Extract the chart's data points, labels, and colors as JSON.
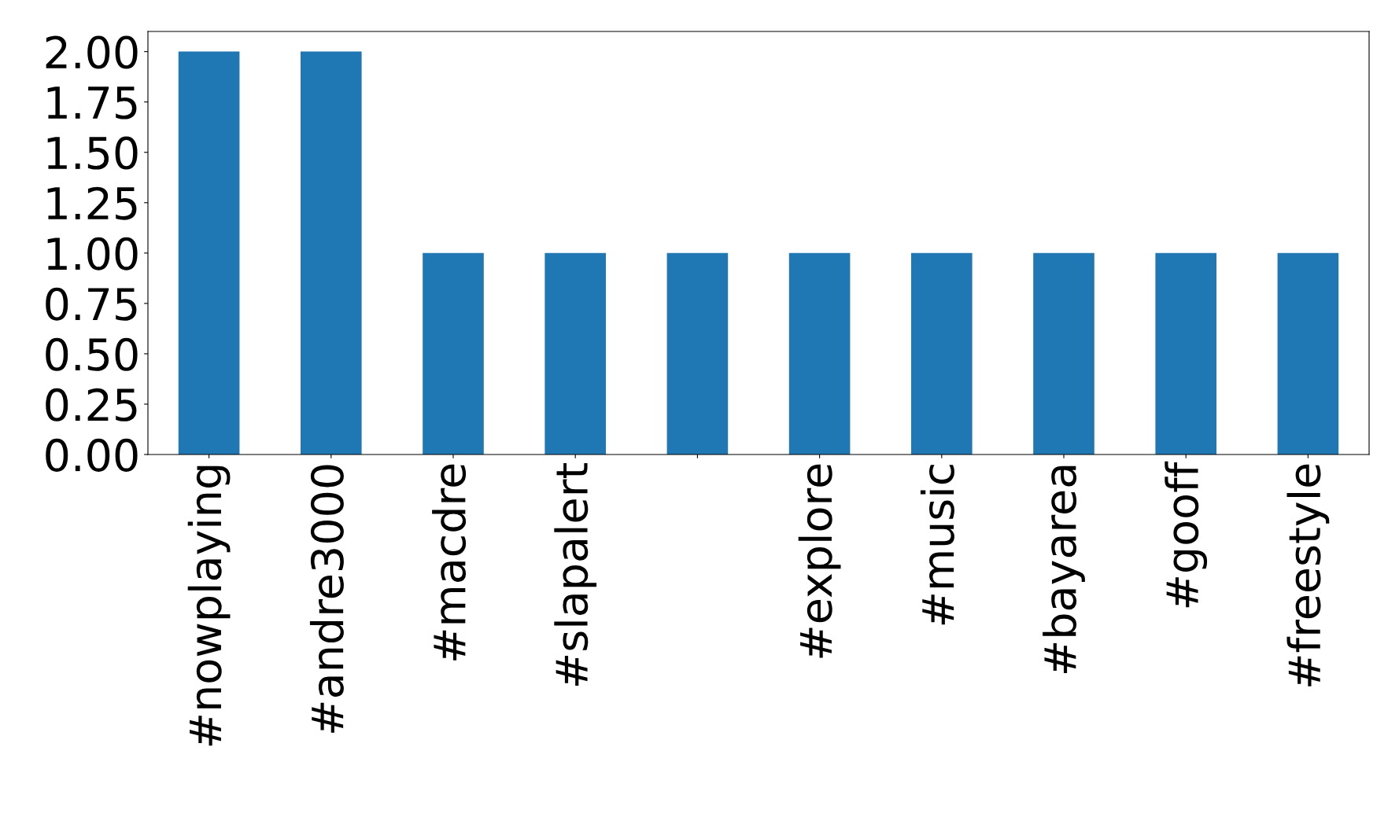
{
  "chart_data": {
    "type": "bar",
    "categories": [
      "#nowplaying",
      "#andre3000",
      "#macdre",
      "#slapalert",
      null,
      "#explore",
      "#music",
      "#bayarea",
      "#gooff",
      "#freestyle"
    ],
    "values": [
      2,
      2,
      1,
      1,
      1,
      1,
      1,
      1,
      1,
      1
    ],
    "color": "#1f77b4",
    "ylim": [
      0,
      2.1
    ],
    "yticks": [
      {
        "value": 0,
        "label": "0.00"
      },
      {
        "value": 0.25,
        "label": "0.25"
      },
      {
        "value": 0.5,
        "label": "0.50"
      },
      {
        "value": 0.75,
        "label": "0.75"
      },
      {
        "value": 1,
        "label": "1.00"
      },
      {
        "value": 1.25,
        "label": "1.25"
      },
      {
        "value": 1.5,
        "label": "1.50"
      },
      {
        "value": 1.75,
        "label": "1.75"
      },
      {
        "value": 2,
        "label": "2.00"
      }
    ],
    "grid": false,
    "legend": false
  }
}
